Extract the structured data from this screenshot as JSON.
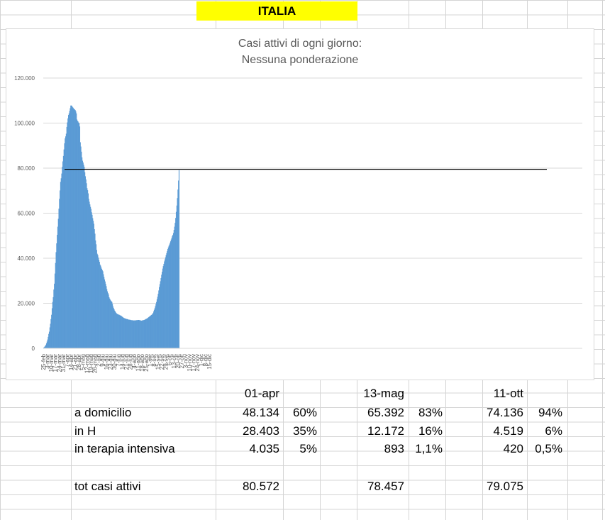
{
  "header": {
    "title": "ITALIA"
  },
  "chart_data": {
    "type": "bar",
    "title": "Casi attivi di ogni giorno:",
    "subtitle": "Nessuna ponderazione",
    "ylim": [
      0,
      120000
    ],
    "yticks": [
      "0",
      "20.000",
      "40.000",
      "60.000",
      "80.000",
      "100.000",
      "120.000"
    ],
    "ytick_values": [
      0,
      20000,
      40000,
      60000,
      80000,
      100000,
      120000
    ],
    "categories_labels": [
      "25-feb",
      "3-mar",
      "10-mar",
      "17-mar",
      "24-mar",
      "31-mar",
      "7-apr",
      "14-apr",
      "21-apr",
      "28-apr",
      "5-mag",
      "12-mag",
      "19-mag",
      "26-mag",
      "2-giu",
      "9-giu",
      "16-giu",
      "23-giu",
      "30-giu",
      "7-lug",
      "14-lug",
      "21-lug",
      "28-lug",
      "4-ago",
      "11-ago",
      "18-ago",
      "25-ago",
      "1-set",
      "8-set",
      "15-set",
      "22-set",
      "29-set",
      "6-ott",
      "13-ott",
      "20-ott",
      "27-ott",
      "3-nov",
      "10-nov",
      "17-nov",
      "24-nov",
      "1-dic",
      "8-dic",
      "15-dic"
    ],
    "reference_line": 79500,
    "color": "#5b9bd5",
    "values": [
      300,
      500,
      800,
      1100,
      1600,
      2200,
      3000,
      3900,
      5100,
      6400,
      7400,
      9300,
      10900,
      13000,
      14900,
      17800,
      20600,
      22700,
      26100,
      28700,
      33200,
      37900,
      42700,
      46600,
      50400,
      54000,
      57500,
      62000,
      66400,
      70100,
      73900,
      75500,
      77600,
      80600,
      83000,
      85400,
      88300,
      91000,
      93200,
      94100,
      95300,
      98300,
      100300,
      102100,
      103600,
      104300,
      105400,
      106600,
      107800,
      107800,
      107700,
      107200,
      106900,
      106600,
      106100,
      106100,
      105800,
      105200,
      104300,
      101600,
      101000,
      100700,
      100200,
      99900,
      98500,
      91500,
      89600,
      87300,
      84800,
      83300,
      82500,
      81500,
      80600,
      78200,
      76400,
      75000,
      73300,
      71100,
      70200,
      68800,
      66400,
      65100,
      63900,
      62800,
      61900,
      60400,
      59300,
      57800,
      56600,
      55300,
      52900,
      50900,
      47900,
      46200,
      43700,
      42000,
      41400,
      40300,
      39300,
      38400,
      37200,
      36700,
      35900,
      35300,
      34700,
      34200,
      32900,
      31700,
      30600,
      29700,
      28600,
      27600,
      26300,
      25300,
      24600,
      23900,
      22700,
      22100,
      21600,
      21200,
      20900,
      20600,
      19700,
      18600,
      17900,
      17300,
      16700,
      16300,
      15900,
      15600,
      15300,
      15200,
      15100,
      14900,
      14900,
      14700,
      14600,
      14500,
      14300,
      14100,
      13900,
      13700,
      13500,
      13400,
      13300,
      13200,
      13100,
      13000,
      13000,
      12900,
      12800,
      12700,
      12700,
      12700,
      12600,
      12500,
      12500,
      12500,
      12400,
      12400,
      12400,
      12400,
      12400,
      12400,
      12500,
      12500,
      12500,
      12600,
      12600,
      12600,
      12500,
      12400,
      12400,
      12300,
      12300,
      12400,
      12500,
      12500,
      12600,
      12700,
      12800,
      13000,
      13100,
      13200,
      13400,
      13600,
      13800,
      14000,
      14200,
      14400,
      14600,
      14800,
      15000,
      15300,
      15700,
      16400,
      17100,
      17800,
      18700,
      19700,
      20600,
      21800,
      22900,
      24200,
      25700,
      27200,
      28500,
      29800,
      31200,
      32700,
      34000,
      35400,
      36500,
      37500,
      38600,
      39500,
      40400,
      41400,
      42300,
      43200,
      44100,
      44800,
      45500,
      46100,
      46800,
      47500,
      48300,
      49000,
      49800,
      50400,
      51200,
      52600,
      54000,
      55700,
      57900,
      60600,
      63400,
      66700,
      70500,
      74500,
      79100
    ]
  },
  "table": {
    "col_dates": [
      "01-apr",
      "13-mag",
      "11-ott"
    ],
    "rows": [
      {
        "label": "a domicilio",
        "v1": "48.134",
        "p1": "60%",
        "v2": "65.392",
        "p2": "83%",
        "v3": "74.136",
        "p3": "94%"
      },
      {
        "label": "in H",
        "v1": "28.403",
        "p1": "35%",
        "v2": "12.172",
        "p2": "16%",
        "v3": "4.519",
        "p3": "6%"
      },
      {
        "label": "in terapia intensiva",
        "v1": "4.035",
        "p1": "5%",
        "v2": "893",
        "p2": "1,1%",
        "v3": "420",
        "p3": "0,5%"
      }
    ],
    "total": {
      "label": "tot casi attivi",
      "v1": "80.572",
      "v2": "78.457",
      "v3": "79.075"
    }
  }
}
